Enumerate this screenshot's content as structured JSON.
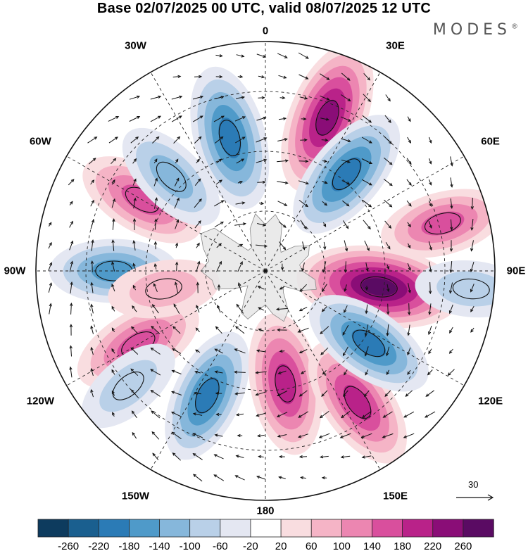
{
  "header": {
    "title": "Base 02/07/2025 00 UTC, valid 08/07/2025 12 UTC",
    "brand": "MODES",
    "brand_mark": "®"
  },
  "map": {
    "projection": "south-polar-stereographic",
    "longitude_labels": [
      {
        "text": "0",
        "lon": 0
      },
      {
        "text": "30E",
        "lon": 30
      },
      {
        "text": "60E",
        "lon": 60
      },
      {
        "text": "90E",
        "lon": 90
      },
      {
        "text": "120E",
        "lon": 120
      },
      {
        "text": "150E",
        "lon": 150
      },
      {
        "text": "180",
        "lon": 180
      },
      {
        "text": "150W",
        "lon": -150
      },
      {
        "text": "120W",
        "lon": -120
      },
      {
        "text": "90W",
        "lon": -90
      },
      {
        "text": "60W",
        "lon": -60
      },
      {
        "text": "30W",
        "lon": -30
      }
    ],
    "wind_reference_label": "30"
  },
  "chart_data": {
    "type": "heatmap",
    "title": "Base 02/07/2025 00 UTC, valid 08/07/2025 12 UTC",
    "variable_description": "filled anomaly field with wind vectors (south polar view)",
    "colorbar": {
      "ticks": [
        -260,
        -220,
        -180,
        -140,
        -100,
        -60,
        -20,
        20,
        60,
        100,
        140,
        180,
        220,
        260
      ],
      "tick_labels": [
        "-260",
        "-220",
        "-180",
        "-140",
        "-100",
        "-60",
        "-20",
        "20",
        "60",
        "100",
        "140",
        "180",
        "220",
        "260"
      ],
      "colors": [
        "#0d3b5e",
        "#1a5f8f",
        "#2b7bb6",
        "#4f9ac9",
        "#86b7db",
        "#b9d0e8",
        "#e4e7f2",
        "#ffffff",
        "#f9dde0",
        "#f5b4c6",
        "#ec86b1",
        "#d94f9d",
        "#b92289",
        "#8a0d77",
        "#5a0b63"
      ]
    },
    "anomaly_centers": [
      {
        "lon": 22,
        "value": 250
      },
      {
        "lon": -15,
        "value": -210
      },
      {
        "lon": 40,
        "value": -200
      },
      {
        "lon": 98,
        "value": 280
      },
      {
        "lon": -60,
        "value": 160
      },
      {
        "lon": -45,
        "value": -130
      },
      {
        "lon": -90,
        "value": -150
      },
      {
        "lon": -120,
        "value": 170
      },
      {
        "lon": -155,
        "value": -180
      },
      {
        "lon": 170,
        "value": 200
      },
      {
        "lon": 145,
        "value": 190
      },
      {
        "lon": 125,
        "value": -180
      },
      {
        "lon": -130,
        "value": -90
      },
      {
        "lon": 75,
        "value": 140
      },
      {
        "lon": -100,
        "value": 90
      },
      {
        "lon": 95,
        "value": -90
      }
    ]
  }
}
